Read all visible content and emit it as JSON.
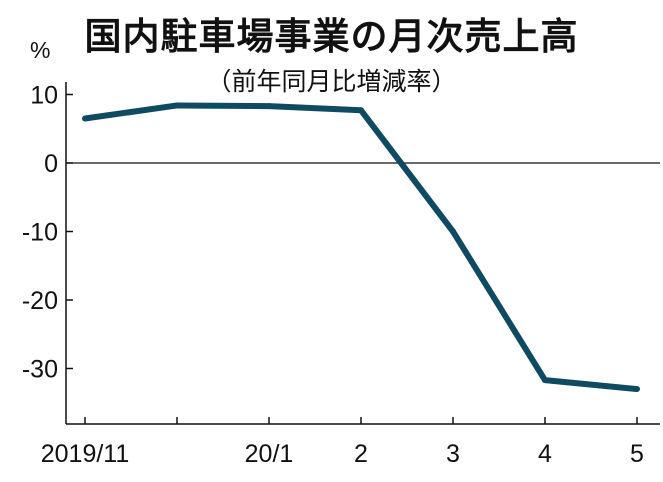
{
  "chart_data": {
    "type": "line",
    "title": "国内駐車場事業の月次売上高",
    "subtitle": "（前年同月比増減率）",
    "unit": "%",
    "xlabel": "",
    "ylabel": "",
    "categories": [
      "2019/11",
      "",
      "20/1",
      "2",
      "3",
      "4",
      "5"
    ],
    "series": [
      {
        "name": "",
        "values": [
          6.5,
          8.4,
          8.3,
          7.7,
          -10,
          -31.7,
          -33
        ]
      }
    ],
    "ylim": [
      -38,
      12
    ],
    "yticks": [
      10,
      0,
      -10,
      -20,
      -30
    ],
    "ytick_labels": [
      "10",
      "0",
      "-10",
      "-20",
      "-30"
    ],
    "zero_line": true,
    "grid": false,
    "colors": {
      "line": "#0e4b63",
      "axis": "#111111"
    }
  }
}
